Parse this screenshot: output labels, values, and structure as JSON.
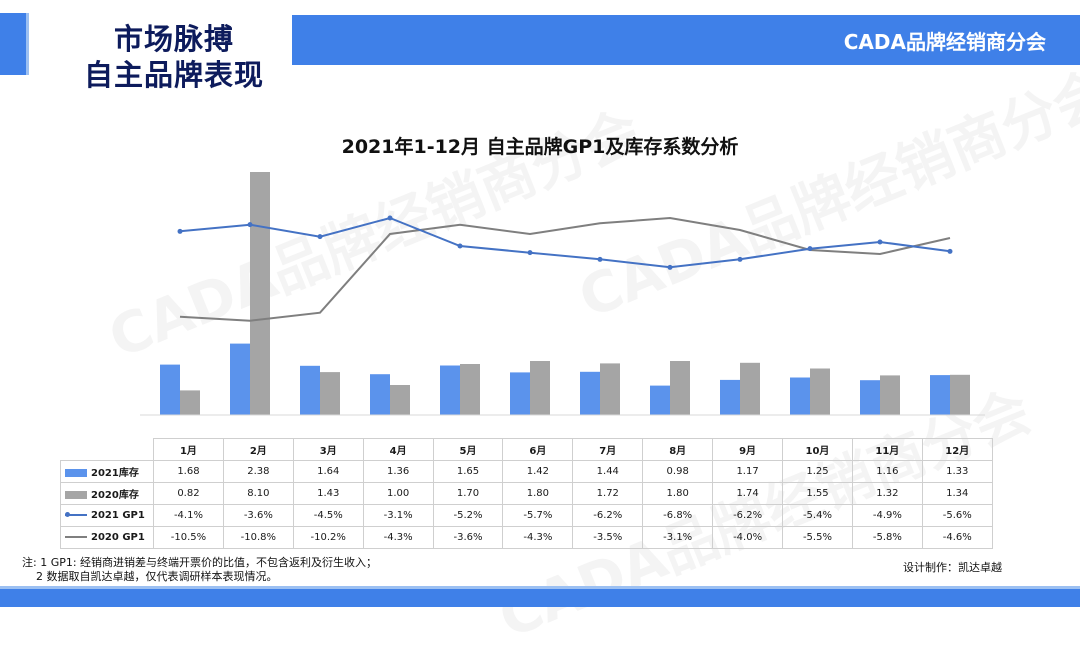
{
  "header": {
    "title_line1": "市场脉搏",
    "title_line2": "自主品牌表现",
    "banner_text": "CADA品牌经销商分会"
  },
  "watermark_text": "CADA品牌经销商分会",
  "colors": {
    "accent": "#3f80e8",
    "inv_2021": "#5b93ec",
    "inv_2020": "#a5a5a5",
    "gp1_2021": "#4472c4",
    "gp1_2020": "#7f7f7f"
  },
  "chart_data": {
    "type": "bar",
    "title": "2021年1-12月 自主品牌GP1及库存系数分析",
    "categories": [
      "1月",
      "2月",
      "3月",
      "4月",
      "5月",
      "6月",
      "7月",
      "8月",
      "9月",
      "10月",
      "11月",
      "12月"
    ],
    "series": [
      {
        "name": "2021库存",
        "type": "bar",
        "values": [
          1.68,
          2.38,
          1.64,
          1.36,
          1.65,
          1.42,
          1.44,
          0.98,
          1.17,
          1.25,
          1.16,
          1.33
        ]
      },
      {
        "name": "2020库存",
        "type": "bar",
        "values": [
          0.82,
          8.1,
          1.43,
          1.0,
          1.7,
          1.8,
          1.72,
          1.8,
          1.74,
          1.55,
          1.32,
          1.34
        ]
      },
      {
        "name": "2021 GP1",
        "type": "line",
        "values": [
          -4.1,
          -3.6,
          -4.5,
          -3.1,
          -5.2,
          -5.7,
          -6.2,
          -6.8,
          -6.2,
          -5.4,
          -4.9,
          -5.6
        ]
      },
      {
        "name": "2020 GP1",
        "type": "line",
        "values": [
          -10.5,
          -10.8,
          -10.2,
          -4.3,
          -3.6,
          -4.3,
          -3.5,
          -3.1,
          -4.0,
          -5.5,
          -5.8,
          -4.6
        ]
      }
    ],
    "table_labels": {
      "inv_2021": [
        "1.68",
        "2.38",
        "1.64",
        "1.36",
        "1.65",
        "1.42",
        "1.44",
        "0.98",
        "1.17",
        "1.25",
        "1.16",
        "1.33"
      ],
      "inv_2020": [
        "0.82",
        "8.10",
        "1.43",
        "1.00",
        "1.70",
        "1.80",
        "1.72",
        "1.80",
        "1.74",
        "1.55",
        "1.32",
        "1.34"
      ],
      "gp1_2021": [
        "-4.1%",
        "-3.6%",
        "-4.5%",
        "-3.1%",
        "-5.2%",
        "-5.7%",
        "-6.2%",
        "-6.8%",
        "-6.2%",
        "-5.4%",
        "-4.9%",
        "-5.6%"
      ],
      "gp1_2020": [
        "-10.5%",
        "-10.8%",
        "-10.2%",
        "-4.3%",
        "-3.6%",
        "-4.3%",
        "-3.5%",
        "-3.1%",
        "-4.0%",
        "-5.5%",
        "-5.8%",
        "-4.6%"
      ]
    },
    "grid": false,
    "legend": "table"
  },
  "footer": {
    "note_line1": "注: 1 GP1: 经销商进销差与终端开票价的比值，不包含返利及衍生收入；",
    "note_line2": "2 数据取自凯达卓越，仅代表调研样本表现情况。",
    "credit": "设计制作：凯达卓越"
  }
}
